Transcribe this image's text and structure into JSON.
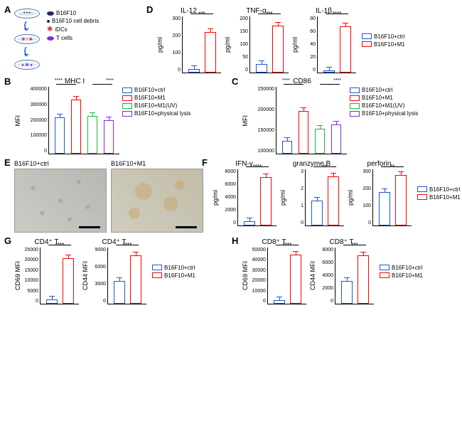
{
  "colors": {
    "blue": "#1e56d6",
    "red": "#ff0000",
    "green": "#1fb43b",
    "purple": "#7a2fd6",
    "border": "#000"
  },
  "panelA": {
    "legend": [
      "B16F10",
      "B16F10 cell debris",
      "iDCs",
      "T cells"
    ]
  },
  "panelB": {
    "title": "MHC I",
    "ylabel": "MFI",
    "ylim": [
      0,
      400000
    ],
    "yticks": [
      "0",
      "100000",
      "200000",
      "300000",
      "400000"
    ],
    "bars": [
      {
        "label": "B16F10+ctrl",
        "value": 215000,
        "color": "#1e56d6"
      },
      {
        "label": "B16F10+M1",
        "value": 320000,
        "color": "#ff0000"
      },
      {
        "label": "B16F10+M1(UV)",
        "value": 225000,
        "color": "#1fb43b"
      },
      {
        "label": "B16F10+physical lysis",
        "value": 200000,
        "color": "#7a2fd6"
      }
    ],
    "sig": [
      "****",
      "****"
    ]
  },
  "panelC": {
    "title": "CD86",
    "ylabel": "MFI",
    "ylim": [
      100000,
      250000
    ],
    "yticks": [
      "100000",
      "150000",
      "200000",
      "250000"
    ],
    "bars": [
      {
        "label": "B16F10+ctrl",
        "value": 128000,
        "color": "#1e56d6"
      },
      {
        "label": "B16F10+M1",
        "value": 195000,
        "color": "#ff0000"
      },
      {
        "label": "B16F10+M1(UV)",
        "value": 156000,
        "color": "#1fb43b"
      },
      {
        "label": "B16F10+physical lysis",
        "value": 165000,
        "color": "#7a2fd6"
      }
    ],
    "sig": [
      "****",
      "****"
    ]
  },
  "panelD": {
    "legend": [
      "B16F10+ctrl",
      "B16F10+M1"
    ],
    "charts": [
      {
        "title": "IL-12",
        "ylabel": "pg/ml",
        "ylim": [
          0,
          300
        ],
        "yticks": [
          "0",
          "100",
          "200",
          "300"
        ],
        "values": [
          20,
          215
        ],
        "sig": "***"
      },
      {
        "title": "TNF-α",
        "ylabel": "pg/ml",
        "ylim": [
          0,
          200
        ],
        "yticks": [
          "0",
          "50",
          "100",
          "150",
          "200"
        ],
        "values": [
          30,
          165
        ],
        "sig": "***"
      },
      {
        "title": "IL-1β",
        "ylabel": "pg/ml",
        "ylim": [
          0,
          80
        ],
        "yticks": [
          "0",
          "20",
          "40",
          "60",
          "80"
        ],
        "values": [
          3,
          65
        ],
        "sig": "****"
      }
    ]
  },
  "panelE": {
    "labels": [
      "B16F10+ctrl",
      "B16F10+M1"
    ]
  },
  "panelF": {
    "legend": [
      "B16F10+ctrl",
      "B16F10+M1"
    ],
    "charts": [
      {
        "title": "IFN-γ",
        "ylabel": "pg/ml",
        "ylim": [
          0,
          8000
        ],
        "yticks": [
          "0",
          "2000",
          "4000",
          "6000",
          "8000"
        ],
        "values": [
          600,
          6800
        ],
        "sig": "****"
      },
      {
        "title": "granzyme B",
        "ylabel": "pg/ml",
        "ylim": [
          0,
          3
        ],
        "yticks": [
          "0",
          "1",
          "2",
          "3"
        ],
        "values": [
          1.3,
          2.6
        ],
        "sig": "**"
      },
      {
        "title": "perforin",
        "ylabel": "pg/ml",
        "ylim": [
          0,
          300
        ],
        "yticks": [
          "0",
          "100",
          "200",
          "300"
        ],
        "values": [
          178,
          265
        ],
        "sig": "**"
      }
    ]
  },
  "panelG": {
    "legend": [
      "B16F10+ctrl",
      "B16F10+M1"
    ],
    "charts": [
      {
        "title": "CD4⁺ T",
        "ylabel": "CD69 MFI",
        "ylim": [
          0,
          25000
        ],
        "yticks": [
          "0",
          "5000",
          "10000",
          "15000",
          "20000",
          "25000"
        ],
        "values": [
          2000,
          20000
        ],
        "sig": "****"
      },
      {
        "title": "CD4⁺ T",
        "ylabel": "CD44 MFI",
        "ylim": [
          0,
          9000
        ],
        "yticks": [
          "0",
          "3000",
          "6000",
          "9000"
        ],
        "values": [
          3600,
          7600
        ],
        "sig": "****"
      }
    ]
  },
  "panelH": {
    "legend": [
      "B16F10+ctrl",
      "B16F10+M1"
    ],
    "charts": [
      {
        "title": "CD8⁺ T",
        "ylabel": "CD69 MFI",
        "ylim": [
          0,
          50000
        ],
        "yticks": [
          "0",
          "10000",
          "20000",
          "30000",
          "40000",
          "50000"
        ],
        "values": [
          3000,
          43000
        ],
        "sig": "****"
      },
      {
        "title": "CD8⁺ T",
        "ylabel": "CD44 MFI",
        "ylim": [
          0,
          8000
        ],
        "yticks": [
          "0",
          "2000",
          "4000",
          "6000",
          "8000"
        ],
        "values": [
          3200,
          6800
        ],
        "sig": "***"
      }
    ]
  }
}
